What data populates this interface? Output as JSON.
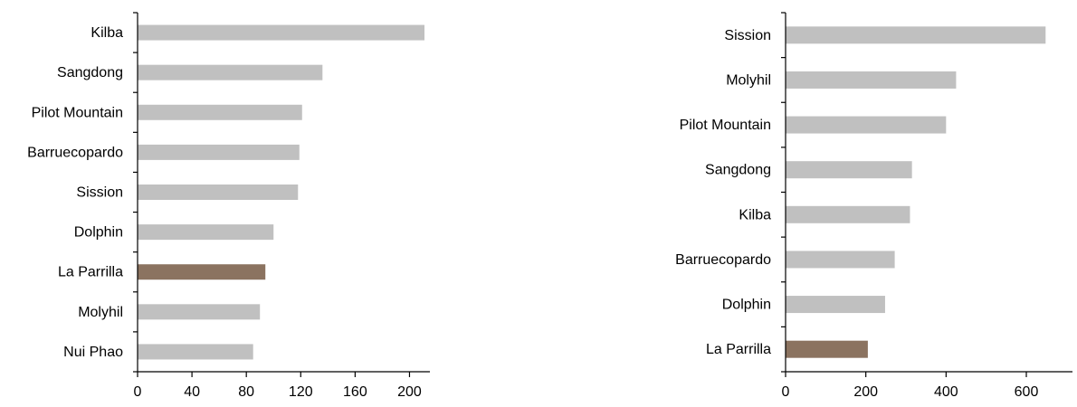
{
  "chart_data": [
    {
      "type": "bar",
      "orientation": "horizontal",
      "categories": [
        "Kilba",
        "Sangdong",
        "Pilot Mountain",
        "Barruecopardo",
        "Sission",
        "Dolphin",
        "La Parrilla",
        "Molyhil",
        "Nui Phao"
      ],
      "values": [
        211,
        136,
        121,
        119,
        118,
        100,
        94,
        90,
        85
      ],
      "highlight": "La Parrilla",
      "xlim": [
        0,
        215
      ],
      "xticks": [
        0,
        40,
        80,
        120,
        160,
        200
      ],
      "grid": false,
      "title": "",
      "xlabel": "",
      "ylabel": ""
    },
    {
      "type": "bar",
      "orientation": "horizontal",
      "categories": [
        "Sission",
        "Molyhil",
        "Pilot Mountain",
        "Sangdong",
        "Kilba",
        "Barruecopardo",
        "Dolphin",
        "La Parrilla"
      ],
      "values": [
        648,
        425,
        400,
        315,
        310,
        272,
        248,
        205
      ],
      "highlight": "La Parrilla",
      "xlim": [
        0,
        715
      ],
      "xticks": [
        0,
        200,
        400,
        600
      ],
      "grid": false,
      "title": "",
      "xlabel": "",
      "ylabel": ""
    }
  ],
  "colors": {
    "bar": "#c0c0c0",
    "highlight": "#8b7360",
    "axis": "#000000"
  }
}
